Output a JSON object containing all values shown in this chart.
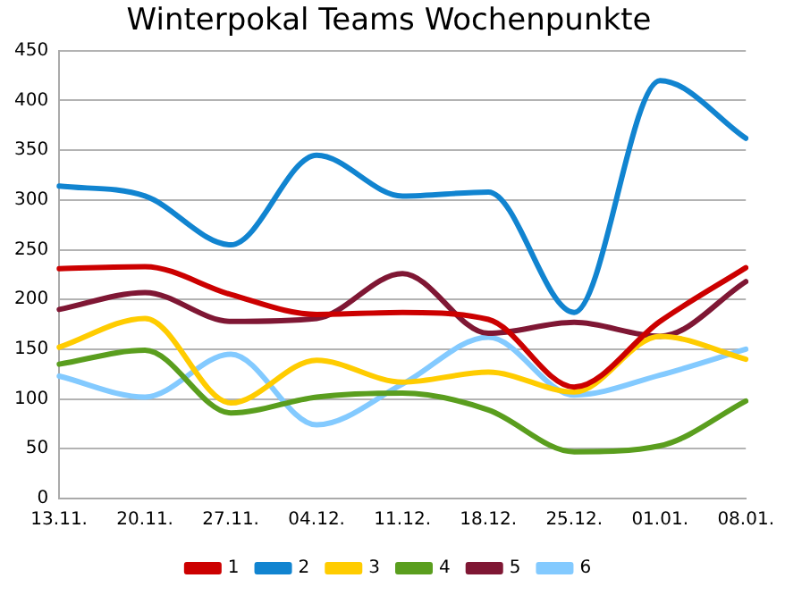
{
  "chart_data": {
    "type": "line",
    "title": "Winterpokal Teams Wochenpunkte",
    "categories": [
      "13.11.",
      "20.11.",
      "27.11.",
      "04.12.",
      "11.12.",
      "18.12.",
      "25.12.",
      "01.01.",
      "08.01."
    ],
    "series": [
      {
        "name": "1",
        "color": "#cc0000",
        "values": [
          231,
          233,
          205,
          185,
          187,
          180,
          112,
          178,
          232
        ]
      },
      {
        "name": "2",
        "color": "#1184d0",
        "values": [
          314,
          304,
          255,
          345,
          304,
          308,
          187,
          420,
          362
        ]
      },
      {
        "name": "3",
        "color": "#ffcc00",
        "values": [
          152,
          181,
          96,
          139,
          117,
          127,
          107,
          163,
          140
        ]
      },
      {
        "name": "4",
        "color": "#5a9e1e",
        "values": [
          135,
          149,
          86,
          102,
          106,
          89,
          47,
          53,
          98
        ]
      },
      {
        "name": "5",
        "color": "#7f1734",
        "values": [
          190,
          207,
          178,
          181,
          226,
          166,
          177,
          163,
          218
        ]
      },
      {
        "name": "6",
        "color": "#83caff",
        "values": [
          123,
          102,
          145,
          74,
          115,
          162,
          104,
          124,
          150
        ]
      }
    ],
    "ylim": [
      0,
      450
    ],
    "yticks": [
      0,
      50,
      100,
      150,
      200,
      250,
      300,
      350,
      400,
      450
    ],
    "grid": "y",
    "legend": "bottom",
    "marker": "none",
    "line_style": "solid"
  }
}
